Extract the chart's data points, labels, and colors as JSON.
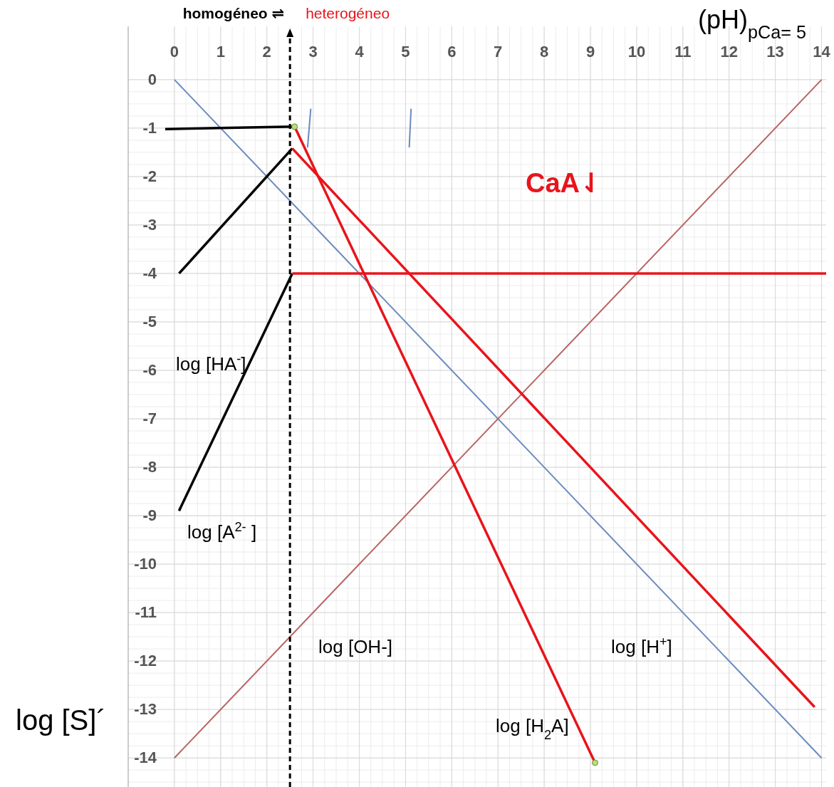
{
  "chart_data": {
    "type": "line",
    "xlabel": "(pH)$_{pCa= 5}$",
    "ylabel": "log [S]´",
    "xlim": [
      -1,
      14.1
    ],
    "ylim": [
      -14.6,
      1.1
    ],
    "xticks": [
      0,
      1,
      2,
      3,
      4,
      5,
      6,
      7,
      8,
      9,
      10,
      11,
      12,
      13,
      14
    ],
    "yticks": [
      0,
      -1,
      -2,
      -3,
      -4,
      -5,
      -6,
      -7,
      -8,
      -9,
      -10,
      -11,
      -12,
      -13,
      -14
    ],
    "grid": true,
    "line_style": "solid",
    "ref_lines": [
      {
        "axis": "x",
        "value": 2.5,
        "color": "#000000",
        "line_style": "dashed"
      }
    ],
    "annotations": [
      "homogéneo ⇌",
      "heterogéneo",
      "log [HA$^{-}$]",
      "log [A$^{2-}$ ]",
      "log [OH-]",
      "log [H$^{+}$]",
      "log [H$_{2}$A]",
      "CaA⇃"
    ],
    "series": [
      {
        "color": "#6b8bbd",
        "x": [
          0,
          14
        ],
        "values": [
          0,
          -14
        ]
      },
      {
        "color": "#b86464",
        "x": [
          0,
          14
        ],
        "values": [
          -14,
          0
        ]
      },
      {
        "color": "#000000",
        "x": [
          -0.2,
          2.6
        ],
        "values": [
          -1.02,
          -0.97
        ]
      },
      {
        "color": "#000000",
        "x": [
          0.1,
          2.55
        ],
        "values": [
          -4,
          -1.42
        ]
      },
      {
        "color": "#000000",
        "x": [
          0.1,
          2.55
        ],
        "values": [
          -8.9,
          -4
        ]
      },
      {
        "color": "#e8141b",
        "x": [
          2.55,
          14.1
        ],
        "values": [
          -4,
          -4
        ]
      },
      {
        "color": "#e8141b",
        "x": [
          2.6,
          9.1
        ],
        "values": [
          -0.97,
          -14.1
        ]
      },
      {
        "color": "#e8141b",
        "x": [
          2.55,
          13.85
        ],
        "values": [
          -1.42,
          -12.95
        ]
      },
      {
        "color": "#6b8bbd",
        "x": [
          2.95,
          2.88
        ],
        "values": [
          -0.6,
          -1.4
        ]
      },
      {
        "color": "#6b8bbd",
        "x": [
          5.12,
          5.08
        ],
        "values": [
          -0.6,
          -1.4
        ]
      },
      {
        "type": "scatter",
        "marker": "circle",
        "color": "#b5e07a",
        "x": [
          2.6,
          9.1
        ],
        "values": [
          -0.97,
          -14.1
        ]
      }
    ]
  }
}
